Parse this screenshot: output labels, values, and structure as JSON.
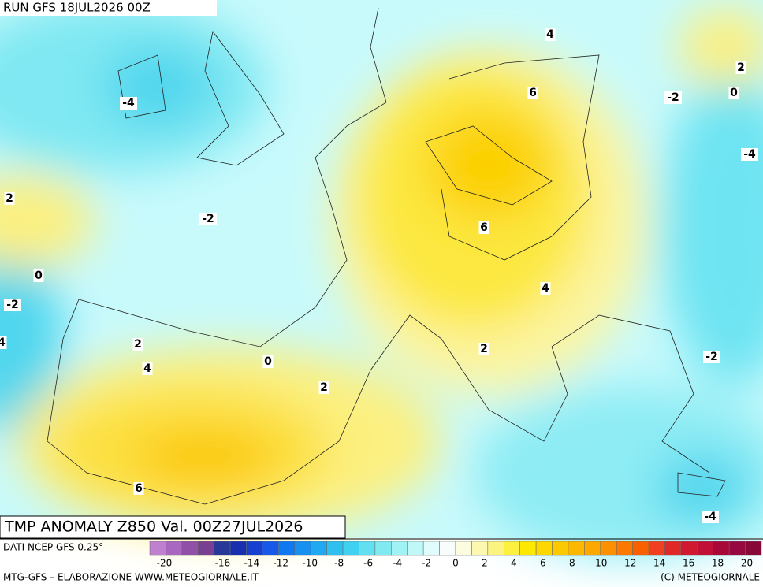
{
  "header": {
    "run": "RUN GFS 18JUL2026 00Z"
  },
  "map": {
    "contour_labels": [
      "4",
      "6",
      "-4",
      "-2",
      "2",
      "0",
      "-4",
      "2",
      "-2",
      "6",
      "0",
      "-2",
      "4",
      "4",
      "2",
      "2",
      "-2",
      "0",
      "4",
      "2",
      "6",
      "-4"
    ]
  },
  "footer": {
    "title": "TMP ANOMALY Z850 Val. 00Z27JUL2026",
    "source": "DATI NCEP GFS 0.25°",
    "credit": "MTG-GFS – ELABORAZIONE WWW.METEOGIORNALE.IT",
    "copyright": "(C) METEOGIORNALE"
  },
  "legend": {
    "ticks": [
      -20,
      -16,
      -14,
      -12,
      -10,
      -8,
      -6,
      -4,
      -2,
      0,
      2,
      4,
      6,
      8,
      10,
      12,
      14,
      16,
      18,
      20
    ],
    "range": [
      -21,
      21
    ],
    "colors": [
      "#c080d0",
      "#a868c0",
      "#9050a8",
      "#784090",
      "#283898",
      "#1830b0",
      "#1840d0",
      "#1858e8",
      "#1078f0",
      "#1890f0",
      "#20a8f0",
      "#30c0f0",
      "#40d0f0",
      "#60e0f0",
      "#80eaf0",
      "#a0f2f4",
      "#c0f8f8",
      "#e0fcfc",
      "#f8fcfc",
      "#fcfce0",
      "#fcf8b0",
      "#fcf480",
      "#fcf040",
      "#fce800",
      "#fcd800",
      "#fcc800",
      "#fcb800",
      "#fca800",
      "#fc9000",
      "#fc7800",
      "#f86000",
      "#f04020",
      "#e02828",
      "#d01830",
      "#c01038",
      "#a80838",
      "#980840",
      "#880838"
    ]
  }
}
